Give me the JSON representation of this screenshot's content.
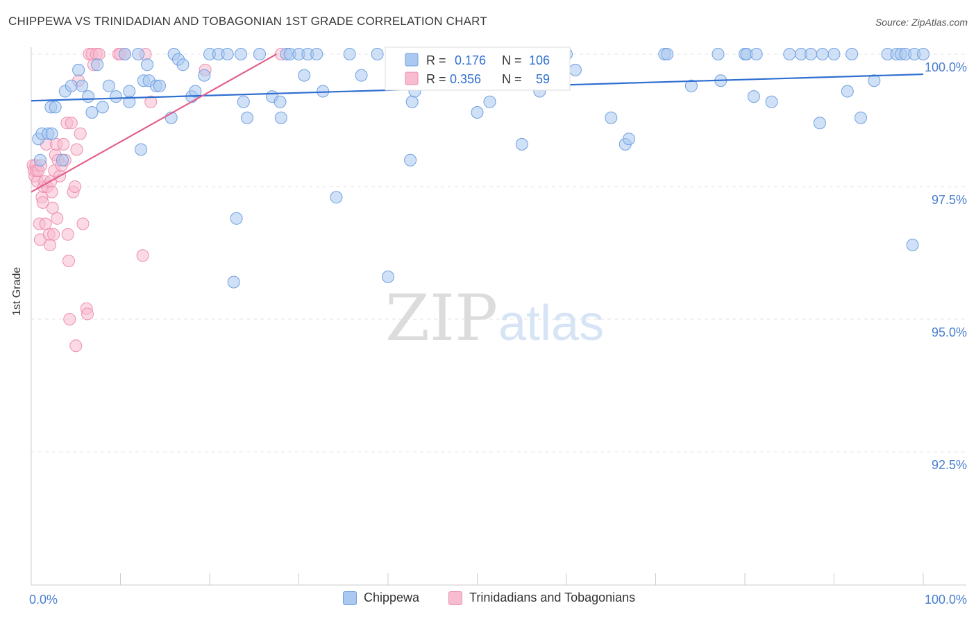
{
  "title": "CHIPPEWA VS TRINIDADIAN AND TOBAGONIAN 1ST GRADE CORRELATION CHART",
  "source": "Source: ZipAtlas.com",
  "watermark": {
    "zip": "ZIP",
    "atlas": "atlas"
  },
  "colors": {
    "blue": "#6fa0e0",
    "blue_fill": "#aac8f0",
    "blue_line": "#2f6fd1",
    "pink": "#ee8fb0",
    "pink_fill": "#f7bcd0",
    "pink_line": "#e2608a",
    "tick_label": "#4a7fd0"
  },
  "legend": {
    "rows": [
      {
        "r_label": "R = ",
        "r_value": "0.176",
        "n_label": "N = ",
        "n_value": "106"
      },
      {
        "r_label": "R = ",
        "r_value": "0.356",
        "n_label": "N = ",
        "n_value": "59"
      }
    ]
  },
  "bottom_legend": [
    "Chippewa",
    "Trinidadians and Tobagonians"
  ],
  "chart_data": {
    "type": "scatter",
    "title": "CHIPPEWA VS TRINIDADIAN AND TOBAGONIAN 1ST GRADE CORRELATION CHART",
    "xlabel": "",
    "ylabel": "1st Grade",
    "xlim": [
      0,
      100
    ],
    "ylim": [
      90.0,
      100.5
    ],
    "x_tick_labels": [
      "0.0%",
      "100.0%"
    ],
    "y_ticks": [
      92.5,
      95.0,
      97.5,
      100.0
    ],
    "y_tick_labels": [
      "92.5%",
      "95.0%",
      "97.5%",
      "100.0%"
    ],
    "grid": true,
    "series": [
      {
        "name": "Chippewa",
        "color": "blue",
        "R": 0.176,
        "N": 106,
        "trend": {
          "x0": 0,
          "y0": 99.12,
          "x1": 100,
          "y1": 99.62
        },
        "points": [
          [
            0.8,
            98.4
          ],
          [
            1.0,
            98.0
          ],
          [
            1.2,
            98.5
          ],
          [
            1.9,
            98.5
          ],
          [
            2.3,
            98.5
          ],
          [
            2.2,
            99.0
          ],
          [
            2.7,
            99.0
          ],
          [
            3.5,
            98.0
          ],
          [
            3.8,
            99.3
          ],
          [
            4.5,
            99.4
          ],
          [
            5.3,
            99.7
          ],
          [
            5.7,
            99.4
          ],
          [
            6.4,
            99.2
          ],
          [
            6.8,
            98.9
          ],
          [
            7.4,
            99.8
          ],
          [
            8.0,
            99.0
          ],
          [
            8.7,
            99.4
          ],
          [
            9.5,
            99.2
          ],
          [
            10.5,
            100.0
          ],
          [
            11.0,
            99.1
          ],
          [
            11.0,
            99.3
          ],
          [
            12.0,
            100.0
          ],
          [
            12.3,
            98.2
          ],
          [
            12.6,
            99.5
          ],
          [
            13.0,
            99.8
          ],
          [
            13.2,
            99.5
          ],
          [
            14.0,
            99.4
          ],
          [
            14.4,
            99.4
          ],
          [
            15.7,
            98.8
          ],
          [
            16.0,
            100.0
          ],
          [
            16.5,
            99.9
          ],
          [
            17.0,
            99.8
          ],
          [
            18.0,
            99.2
          ],
          [
            18.4,
            99.3
          ],
          [
            19.4,
            99.6
          ],
          [
            20.0,
            100.0
          ],
          [
            21.0,
            100.0
          ],
          [
            22.0,
            100.0
          ],
          [
            22.7,
            95.7
          ],
          [
            23.0,
            96.9
          ],
          [
            23.5,
            100.0
          ],
          [
            23.8,
            99.1
          ],
          [
            24.2,
            98.8
          ],
          [
            25.6,
            100.0
          ],
          [
            27.0,
            99.2
          ],
          [
            27.9,
            99.1
          ],
          [
            28.0,
            98.8
          ],
          [
            28.6,
            100.0
          ],
          [
            29.0,
            100.0
          ],
          [
            30.0,
            100.0
          ],
          [
            30.6,
            99.6
          ],
          [
            31.0,
            100.0
          ],
          [
            32.0,
            100.0
          ],
          [
            32.7,
            99.3
          ],
          [
            34.2,
            97.3
          ],
          [
            35.7,
            100.0
          ],
          [
            37.0,
            99.6
          ],
          [
            38.8,
            100.0
          ],
          [
            40.0,
            95.8
          ],
          [
            41.0,
            100.0
          ],
          [
            42.0,
            100.0
          ],
          [
            42.5,
            98.0
          ],
          [
            42.7,
            99.1
          ],
          [
            43.0,
            99.3
          ],
          [
            44.0,
            100.0
          ],
          [
            45.0,
            100.0
          ],
          [
            46.0,
            100.0
          ],
          [
            47.0,
            100.0
          ],
          [
            49.0,
            100.0
          ],
          [
            50.0,
            98.9
          ],
          [
            51.4,
            99.1
          ],
          [
            52.0,
            100.0
          ],
          [
            55.0,
            98.3
          ],
          [
            57.0,
            99.3
          ],
          [
            60.0,
            100.0
          ],
          [
            61.0,
            99.7
          ],
          [
            65.0,
            98.8
          ],
          [
            66.6,
            98.3
          ],
          [
            67.0,
            98.4
          ],
          [
            71.0,
            100.0
          ],
          [
            71.3,
            100.0
          ],
          [
            74.0,
            99.4
          ],
          [
            77.0,
            100.0
          ],
          [
            77.3,
            99.5
          ],
          [
            80.0,
            100.0
          ],
          [
            80.2,
            100.0
          ],
          [
            81.0,
            99.2
          ],
          [
            81.3,
            100.0
          ],
          [
            83.0,
            99.1
          ],
          [
            85.0,
            100.0
          ],
          [
            86.3,
            100.0
          ],
          [
            87.4,
            100.0
          ],
          [
            88.4,
            98.7
          ],
          [
            88.7,
            100.0
          ],
          [
            90.0,
            100.0
          ],
          [
            91.5,
            99.3
          ],
          [
            92.0,
            100.0
          ],
          [
            93.0,
            98.8
          ],
          [
            94.5,
            99.5
          ],
          [
            96.0,
            100.0
          ],
          [
            97.0,
            100.0
          ],
          [
            97.5,
            100.0
          ],
          [
            98.0,
            100.0
          ],
          [
            98.8,
            96.4
          ],
          [
            99.0,
            100.0
          ],
          [
            100.0,
            100.0
          ]
        ]
      },
      {
        "name": "Trinidadians and Tobagonians",
        "color": "pink",
        "R": 0.356,
        "N": 59,
        "trend": {
          "x0": 0,
          "y0": 97.4,
          "x1": 27.5,
          "y1": 100.0
        },
        "points": [
          [
            0.2,
            97.9
          ],
          [
            0.3,
            97.8
          ],
          [
            0.4,
            97.7
          ],
          [
            0.5,
            97.9
          ],
          [
            0.6,
            97.8
          ],
          [
            0.7,
            97.6
          ],
          [
            0.8,
            97.8
          ],
          [
            0.9,
            96.8
          ],
          [
            1.0,
            96.5
          ],
          [
            1.1,
            97.9
          ],
          [
            1.2,
            97.3
          ],
          [
            1.3,
            97.2
          ],
          [
            1.4,
            97.5
          ],
          [
            1.5,
            97.6
          ],
          [
            1.6,
            96.8
          ],
          [
            1.7,
            98.3
          ],
          [
            1.8,
            97.5
          ],
          [
            2.0,
            96.6
          ],
          [
            2.1,
            96.4
          ],
          [
            2.2,
            97.6
          ],
          [
            2.3,
            97.4
          ],
          [
            2.4,
            97.1
          ],
          [
            2.5,
            96.6
          ],
          [
            2.6,
            97.8
          ],
          [
            2.7,
            98.1
          ],
          [
            2.8,
            98.3
          ],
          [
            2.9,
            96.9
          ],
          [
            3.0,
            98.0
          ],
          [
            3.2,
            97.7
          ],
          [
            3.4,
            97.9
          ],
          [
            3.6,
            98.3
          ],
          [
            3.8,
            98.0
          ],
          [
            4.0,
            98.7
          ],
          [
            4.1,
            96.6
          ],
          [
            4.2,
            96.1
          ],
          [
            4.3,
            95.0
          ],
          [
            4.5,
            98.7
          ],
          [
            4.7,
            97.4
          ],
          [
            4.9,
            97.5
          ],
          [
            5.0,
            94.5
          ],
          [
            5.1,
            98.2
          ],
          [
            5.3,
            99.5
          ],
          [
            5.5,
            98.5
          ],
          [
            5.8,
            96.8
          ],
          [
            6.2,
            95.2
          ],
          [
            6.3,
            95.1
          ],
          [
            6.5,
            100.0
          ],
          [
            6.8,
            100.0
          ],
          [
            7.0,
            99.8
          ],
          [
            7.3,
            100.0
          ],
          [
            7.6,
            100.0
          ],
          [
            9.8,
            100.0
          ],
          [
            10.0,
            100.0
          ],
          [
            10.5,
            100.0
          ],
          [
            12.5,
            96.2
          ],
          [
            12.8,
            100.0
          ],
          [
            13.4,
            99.1
          ],
          [
            19.5,
            99.7
          ],
          [
            28.0,
            100.0
          ]
        ]
      }
    ]
  }
}
